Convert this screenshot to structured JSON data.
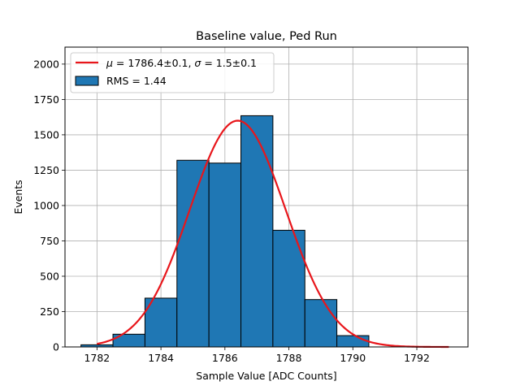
{
  "chart_data": {
    "type": "bar",
    "title": "Baseline value, Ped Run",
    "xlabel": "Sample Value [ADC Counts]",
    "ylabel": "Events",
    "xlim": [
      1781.0,
      1793.6
    ],
    "ylim": [
      0,
      2120
    ],
    "grid": true,
    "xticks": [
      1782,
      1784,
      1786,
      1788,
      1790,
      1792
    ],
    "yticks": [
      0,
      250,
      500,
      750,
      1000,
      1250,
      1500,
      1750,
      2000
    ],
    "histogram": {
      "name": "RMS = 1.44",
      "bin_edges": [
        1781.5,
        1782.5,
        1783.5,
        1784.5,
        1785.5,
        1786.5,
        1787.5,
        1788.5,
        1789.5,
        1790.5
      ],
      "counts": [
        15,
        90,
        345,
        1320,
        1300,
        1635,
        825,
        335,
        80
      ],
      "color": "#1f77b4",
      "edgecolor": "#000000"
    },
    "fit": {
      "name_parts": {
        "mu_symbol": "μ",
        "mu_text": " = 1786.4±0.1, ",
        "sigma_symbol": "σ",
        "sigma_text": " = 1.5±0.1"
      },
      "mu": 1786.4,
      "sigma": 1.5,
      "amplitude": 1600,
      "x_range": [
        1782,
        1793
      ],
      "color": "#e8161b"
    },
    "legend_position": "upper-left"
  }
}
